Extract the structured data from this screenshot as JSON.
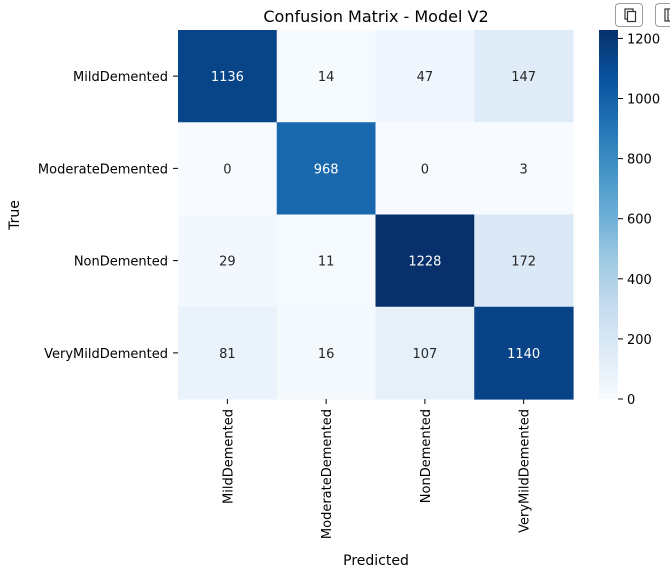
{
  "chart_data": {
    "type": "heatmap",
    "title": "Confusion Matrix - Model V2",
    "xlabel": "Predicted",
    "ylabel": "True",
    "x_categories": [
      "MildDemented",
      "ModerateDemented",
      "NonDemented",
      "VeryMildDemented"
    ],
    "y_categories": [
      "MildDemented",
      "ModerateDemented",
      "NonDemented",
      "VeryMildDemented"
    ],
    "values": [
      [
        1136,
        14,
        47,
        147
      ],
      [
        0,
        968,
        0,
        3
      ],
      [
        29,
        11,
        1228,
        172
      ],
      [
        81,
        16,
        107,
        1140
      ]
    ],
    "colormap": "Blues",
    "colorbar": {
      "vmin": 0,
      "vmax": 1228,
      "ticks": [
        0,
        200,
        400,
        600,
        800,
        1000,
        1200
      ]
    }
  },
  "toolbar": {
    "copy_icon": "copy-icon",
    "second_icon": "panel-icon"
  }
}
